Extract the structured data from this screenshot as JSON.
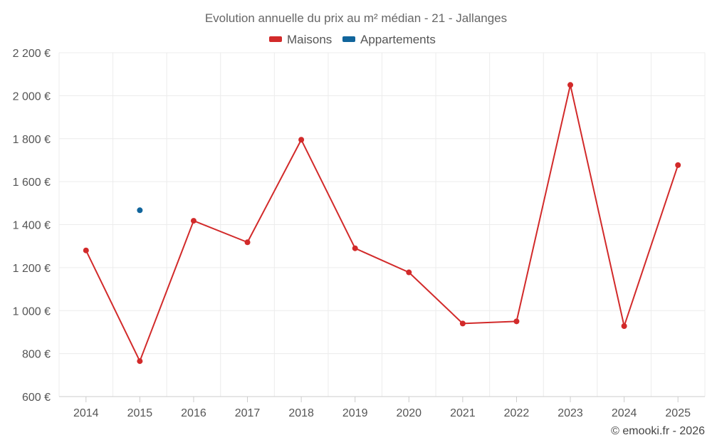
{
  "chart_data": {
    "type": "line",
    "title": "Evolution annuelle du prix au m² médian - 21 - Jallanges",
    "categories": [
      "2014",
      "2015",
      "2016",
      "2017",
      "2018",
      "2019",
      "2020",
      "2021",
      "2022",
      "2023",
      "2024",
      "2025"
    ],
    "series": [
      {
        "name": "Maisons",
        "color": "#d22a2a",
        "values": [
          1280,
          765,
          1418,
          1318,
          1795,
          1290,
          1178,
          940,
          950,
          2050,
          928,
          1677
        ]
      },
      {
        "name": "Appartements",
        "color": "#11659c",
        "values": [
          null,
          1467,
          null,
          null,
          null,
          null,
          null,
          null,
          null,
          null,
          null,
          null
        ]
      }
    ],
    "ylim": [
      600,
      2200
    ],
    "yticks": [
      600,
      800,
      1000,
      1200,
      1400,
      1600,
      1800,
      2000,
      2200
    ],
    "ytick_labels": [
      "600 €",
      "800 €",
      "1 000 €",
      "1 200 €",
      "1 400 €",
      "1 600 €",
      "1 800 €",
      "2 000 €",
      "2 200 €"
    ],
    "xlabel": "",
    "ylabel": "",
    "legend_position": "top-center",
    "grid": true
  },
  "credit": "© emooki.fr - 2026"
}
